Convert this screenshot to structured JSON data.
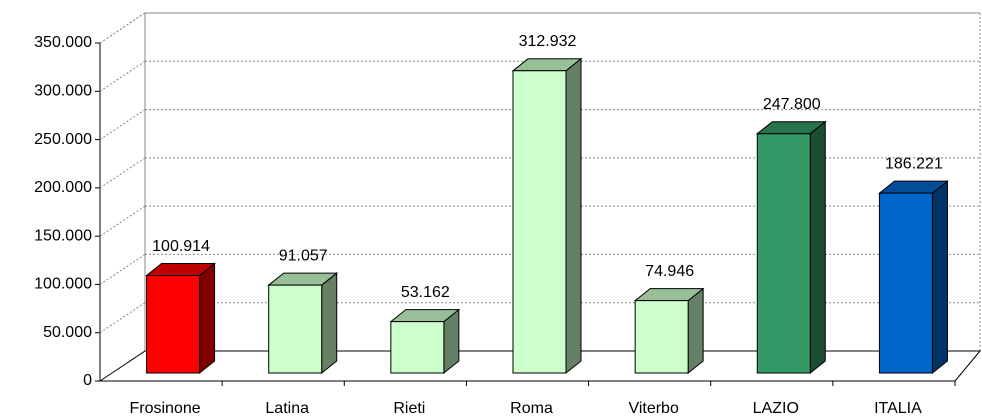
{
  "chart_data": {
    "type": "bar3d",
    "categories": [
      "Frosinone",
      "Latina",
      "Rieti",
      "Roma",
      "Viterbo",
      "LAZIO",
      "ITALIA"
    ],
    "values": [
      100914,
      91057,
      53162,
      312932,
      74946,
      247800,
      186221
    ],
    "value_labels": [
      "100.914",
      "91.057",
      "53.162",
      "312.932",
      "74.946",
      "247.800",
      "186.221"
    ],
    "colors": [
      "#ff0000",
      "#ccffcc",
      "#ccffcc",
      "#ccffcc",
      "#ccffcc",
      "#339966",
      "#0066cc"
    ],
    "ylim": [
      0,
      350000
    ],
    "yticks": [
      0,
      {
        "value": 50000,
        "label": "50.000"
      },
      {
        "value": 100000,
        "label": "100.000"
      },
      {
        "value": 150000,
        "label": "150.000"
      },
      {
        "value": 200000,
        "label": "200.000"
      },
      {
        "value": 250000,
        "label": "250.000"
      },
      {
        "value": 300000,
        "label": "300.000"
      },
      {
        "value": 350000,
        "label": "350.000"
      }
    ],
    "grid": true
  }
}
